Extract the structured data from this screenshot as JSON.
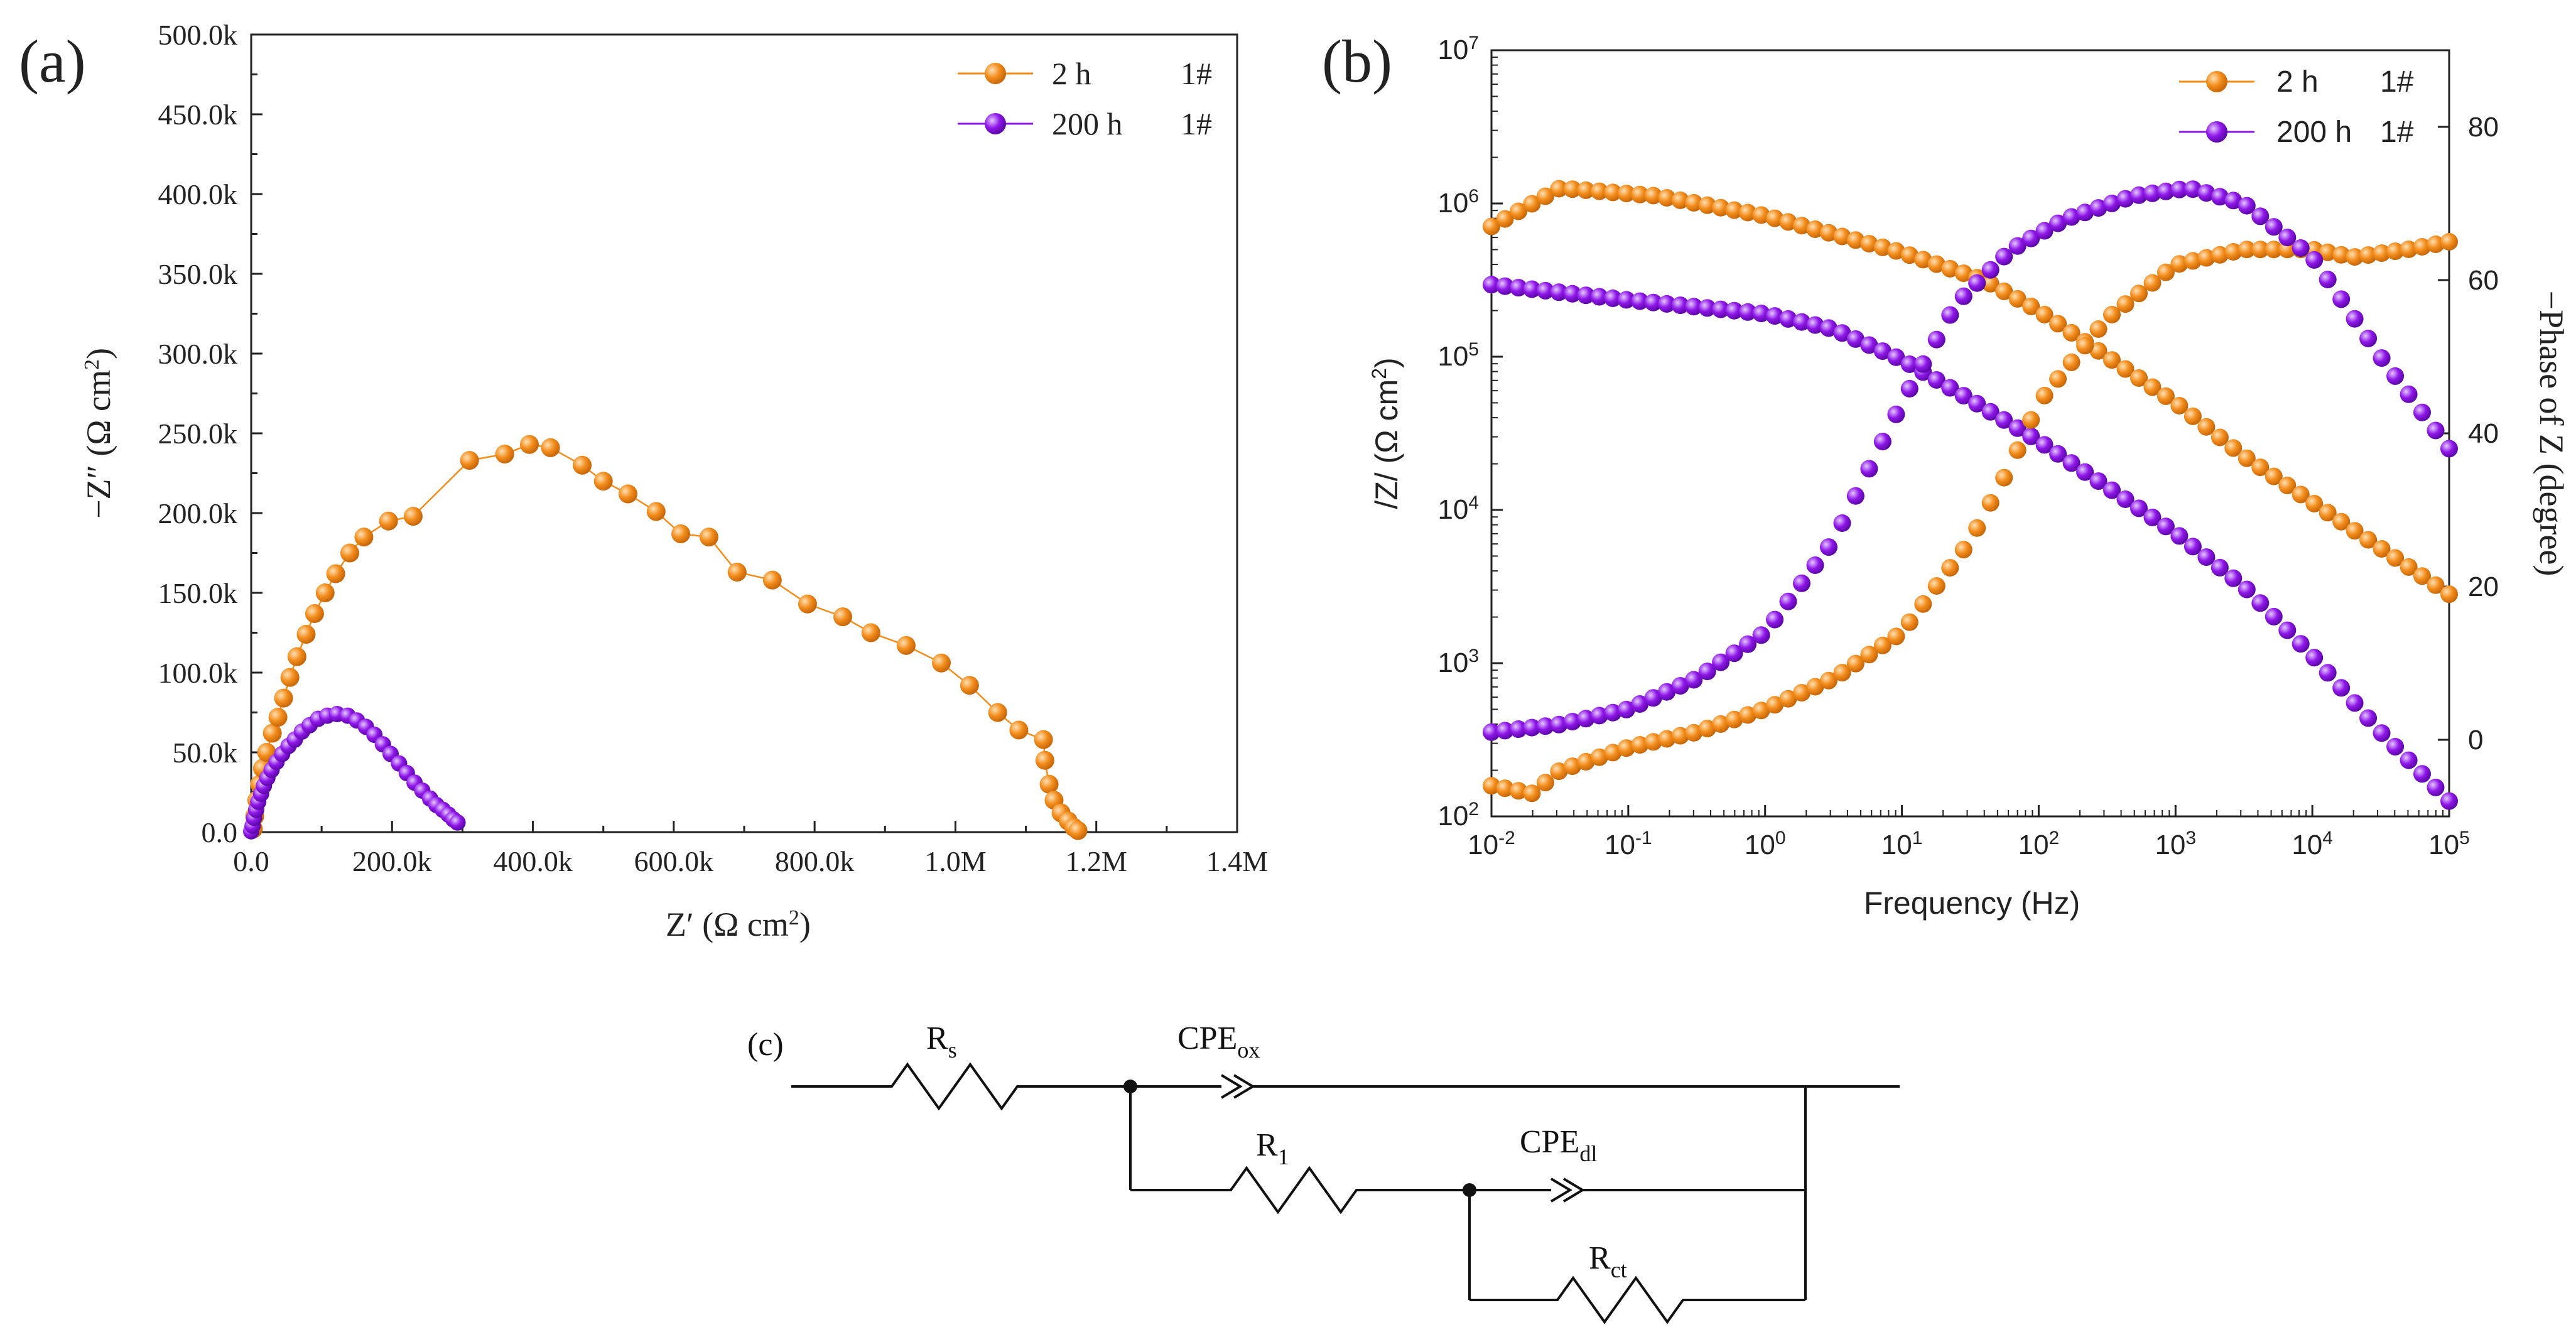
{
  "chart_data": [
    {
      "type": "scatter",
      "panel": "(a)",
      "title": "",
      "xlabel": "Z′ (Ω cm²)",
      "ylabel": "−Z″ (Ω cm²)",
      "xlim": [
        0,
        1400000
      ],
      "ylim": [
        0,
        500000
      ],
      "x_ticks": [
        "0.0",
        "200.0k",
        "400.0k",
        "600.0k",
        "800.0k",
        "1.0M",
        "1.2M",
        "1.4M"
      ],
      "y_ticks": [
        "0.0",
        "50.0k",
        "100.0k",
        "150.0k",
        "200.0k",
        "250.0k",
        "300.0k",
        "350.0k",
        "400.0k",
        "450.0k",
        "500.0k"
      ],
      "legend": [
        {
          "label": "2 h",
          "sample": "1#",
          "color": "#f28c1b"
        },
        {
          "label": "200 h",
          "sample": "1#",
          "color": "#8f17e8"
        }
      ],
      "series": [
        {
          "name": "2 h 1#",
          "color": "#f28c1b",
          "points": [
            [
              3000,
              2000
            ],
            [
              5000,
              10000
            ],
            [
              8000,
              20000
            ],
            [
              12000,
              30000
            ],
            [
              16000,
              40000
            ],
            [
              22000,
              50000
            ],
            [
              30000,
              62000
            ],
            [
              38000,
              72000
            ],
            [
              46000,
              84000
            ],
            [
              55000,
              97000
            ],
            [
              65000,
              110000
            ],
            [
              78000,
              124000
            ],
            [
              90000,
              137000
            ],
            [
              105000,
              150000
            ],
            [
              120000,
              162000
            ],
            [
              140000,
              175000
            ],
            [
              160000,
              185000
            ],
            [
              195000,
              195000
            ],
            [
              230000,
              198000
            ],
            [
              310000,
              233000
            ],
            [
              360000,
              237000
            ],
            [
              395000,
              243000
            ],
            [
              425000,
              241000
            ],
            [
              470000,
              230000
            ],
            [
              500000,
              220000
            ],
            [
              535000,
              212000
            ],
            [
              575000,
              201000
            ],
            [
              610000,
              187000
            ],
            [
              650000,
              185000
            ],
            [
              690000,
              163000
            ],
            [
              740000,
              158000
            ],
            [
              790000,
              143000
            ],
            [
              840000,
              135000
            ],
            [
              880000,
              125000
            ],
            [
              930000,
              117000
            ],
            [
              980000,
              106000
            ],
            [
              1020000,
              92000
            ],
            [
              1060000,
              75000
            ],
            [
              1090000,
              64000
            ],
            [
              1125000,
              58000
            ],
            [
              1127000,
              45000
            ],
            [
              1133000,
              30000
            ],
            [
              1140000,
              20000
            ],
            [
              1150000,
              12000
            ],
            [
              1160000,
              7000
            ],
            [
              1168000,
              3000
            ],
            [
              1174000,
              1000
            ]
          ]
        },
        {
          "name": "200 h 1#",
          "color": "#8f17e8",
          "points": [
            [
              0,
              500
            ],
            [
              2000,
              4000
            ],
            [
              4000,
              9000
            ],
            [
              7000,
              14000
            ],
            [
              10000,
              19000
            ],
            [
              14000,
              24000
            ],
            [
              18000,
              29000
            ],
            [
              23000,
              34000
            ],
            [
              29000,
              39000
            ],
            [
              36000,
              44000
            ],
            [
              44000,
              49000
            ],
            [
              53000,
              54000
            ],
            [
              62000,
              58000
            ],
            [
              72000,
              63000
            ],
            [
              83000,
              67000
            ],
            [
              95000,
              71000
            ],
            [
              108000,
              73000
            ],
            [
              122000,
              74000
            ],
            [
              137000,
              73000
            ],
            [
              150000,
              70000
            ],
            [
              163000,
              66000
            ],
            [
              175000,
              61000
            ],
            [
              187000,
              55000
            ],
            [
              198000,
              49000
            ],
            [
              210000,
              43000
            ],
            [
              221000,
              37000
            ],
            [
              232000,
              31000
            ],
            [
              243000,
              26000
            ],
            [
              254000,
              21000
            ],
            [
              263000,
              17000
            ],
            [
              272000,
              14000
            ],
            [
              280000,
              11000
            ],
            [
              287000,
              8000
            ],
            [
              293000,
              6000
            ]
          ]
        }
      ]
    },
    {
      "type": "scatter",
      "panel": "(b)",
      "title": "",
      "xlabel": "Frequency (Hz)",
      "ylabel": "/Z/ (Ω cm²)",
      "y2label": "−Phase of Z (degree)",
      "xscale": "log",
      "yscale": "log",
      "xlim": [
        0.01,
        100000
      ],
      "ylim": [
        100,
        10000000
      ],
      "y2lim": [
        -10,
        90
      ],
      "x_ticks": [
        "10-2",
        "10-1",
        "100",
        "101",
        "102",
        "103",
        "104",
        "105"
      ],
      "y_ticks": [
        "102",
        "103",
        "104",
        "105",
        "106",
        "107"
      ],
      "y2_ticks": [
        "0",
        "20",
        "40",
        "60",
        "80"
      ],
      "legend": [
        {
          "label": "2 h",
          "sample": "1#",
          "color": "#f28c1b"
        },
        {
          "label": "200 h",
          "sample": "1#",
          "color": "#8f17e8"
        }
      ],
      "series": [
        {
          "name": "2 h 1# |Z|",
          "color": "#f28c1b",
          "axis": "left",
          "anchors_logf_logz": [
            [
              -2,
              5.85
            ],
            [
              -1.5,
              6.1
            ],
            [
              -0.8,
              6.05
            ],
            [
              0,
              5.92
            ],
            [
              1,
              5.68
            ],
            [
              1.6,
              5.5
            ],
            [
              2,
              5.3
            ],
            [
              2.5,
              5.0
            ],
            [
              3,
              4.7
            ],
            [
              3.5,
              4.35
            ],
            [
              4,
              4.05
            ],
            [
              4.5,
              3.75
            ],
            [
              5,
              3.45
            ]
          ],
          "n": 72
        },
        {
          "name": "200 h 1# |Z|",
          "color": "#8f17e8",
          "axis": "left",
          "anchors_logf_logz": [
            [
              -2,
              5.47
            ],
            [
              -1,
              5.37
            ],
            [
              0,
              5.28
            ],
            [
              0.5,
              5.18
            ],
            [
              1,
              4.98
            ],
            [
              1.5,
              4.72
            ],
            [
              2,
              4.45
            ],
            [
              2.5,
              4.15
            ],
            [
              3,
              3.85
            ],
            [
              3.5,
              3.5
            ],
            [
              4,
              3.05
            ],
            [
              4.5,
              2.55
            ],
            [
              5,
              2.1
            ]
          ],
          "n": 72
        },
        {
          "name": "2 h 1# phase",
          "color": "#f28c1b",
          "axis": "right",
          "anchors_logf_phase": [
            [
              -2,
              -6
            ],
            [
              -1.7,
              -7
            ],
            [
              -1.5,
              -4
            ],
            [
              -1,
              -1
            ],
            [
              -0.5,
              1
            ],
            [
              0,
              4
            ],
            [
              0.5,
              8
            ],
            [
              1,
              14
            ],
            [
              1.5,
              26
            ],
            [
              1.8,
              36
            ],
            [
              2,
              44
            ],
            [
              2.5,
              55
            ],
            [
              3,
              62
            ],
            [
              3.5,
              64
            ],
            [
              4,
              64
            ],
            [
              4.3,
              63
            ],
            [
              4.7,
              64
            ],
            [
              5,
              65
            ]
          ],
          "n": 72
        },
        {
          "name": "200 h 1# phase",
          "color": "#8f17e8",
          "axis": "right",
          "anchors_logf_phase": [
            [
              -2,
              1
            ],
            [
              -1.5,
              2
            ],
            [
              -1,
              4
            ],
            [
              -0.5,
              8
            ],
            [
              0,
              14
            ],
            [
              0.5,
              26
            ],
            [
              1,
              44
            ],
            [
              1.4,
              57
            ],
            [
              1.8,
              64
            ],
            [
              2.2,
              68
            ],
            [
              2.7,
              71
            ],
            [
              3.1,
              72
            ],
            [
              3.5,
              70
            ],
            [
              4,
              63
            ],
            [
              4.5,
              50
            ],
            [
              5,
              38
            ]
          ],
          "n": 72
        }
      ]
    }
  ],
  "panel_labels": {
    "a": "(a)",
    "b": "(b)",
    "c": "(c)"
  },
  "circuit": {
    "title": "(c)",
    "Rs": {
      "main": "R",
      "sub": "s"
    },
    "CPEox": {
      "main": "CPE",
      "sub": "ox"
    },
    "R1": {
      "main": "R",
      "sub": "1"
    },
    "CPEdl": {
      "main": "CPE",
      "sub": "dl"
    },
    "Rct": {
      "main": "R",
      "sub": "ct"
    }
  },
  "colors": {
    "orange": "#f28c1b",
    "purple": "#8f17e8",
    "axis": "#222222"
  }
}
